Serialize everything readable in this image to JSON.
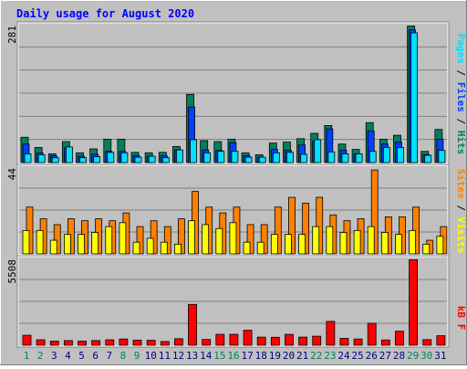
{
  "title": "Daily usage for August 2020",
  "colors": {
    "hits": "#00805c",
    "files": "#0040ff",
    "pages": "#00e0ff",
    "visits": "#ffff00",
    "sites": "#ff8000",
    "kbytes": "#ff0000",
    "title": "#0000ff",
    "weekend_day": "#00805c",
    "weekday_day": "#000080",
    "plot_bg": "#c0c0c0",
    "frame_bg": "#ffffff"
  },
  "chart_data": [
    {
      "type": "bar",
      "panel": "hits",
      "ymax_label": "281",
      "ylim": [
        0,
        281
      ],
      "legend": [
        "Pages",
        "/",
        "Files",
        "/",
        "Hits"
      ],
      "categories": [
        "1",
        "2",
        "3",
        "4",
        "5",
        "6",
        "7",
        "8",
        "9",
        "10",
        "11",
        "12",
        "13",
        "14",
        "15",
        "16",
        "17",
        "18",
        "19",
        "20",
        "21",
        "22",
        "23",
        "24",
        "25",
        "26",
        "27",
        "28",
        "29",
        "30",
        "31"
      ],
      "weekend_days": [
        "1",
        "2",
        "8",
        "9",
        "15",
        "16",
        "22",
        "23",
        "29",
        "30"
      ],
      "series": [
        {
          "name": "Hits",
          "values": [
            52,
            31,
            18,
            43,
            20,
            28,
            48,
            48,
            21,
            20,
            21,
            33,
            140,
            45,
            43,
            48,
            20,
            16,
            40,
            42,
            49,
            60,
            76,
            38,
            27,
            82,
            48,
            56,
            280,
            23,
            68
          ]
        },
        {
          "name": "Files",
          "values": [
            38,
            20,
            14,
            30,
            13,
            17,
            23,
            23,
            14,
            13,
            14,
            26,
            114,
            26,
            25,
            41,
            14,
            11,
            27,
            25,
            36,
            44,
            69,
            25,
            18,
            65,
            38,
            42,
            272,
            16,
            48
          ]
        },
        {
          "name": "Pages",
          "values": [
            18,
            16,
            10,
            32,
            10,
            12,
            21,
            20,
            11,
            13,
            10,
            26,
            47,
            20,
            23,
            23,
            11,
            11,
            20,
            21,
            17,
            47,
            22,
            18,
            18,
            23,
            31,
            31,
            266,
            15,
            25
          ]
        }
      ]
    },
    {
      "type": "bar",
      "panel": "visits",
      "ymax_label": "44",
      "ylim": [
        0,
        44
      ],
      "legend": [
        "Sites",
        "/",
        "Visits"
      ],
      "categories": [
        "1",
        "2",
        "3",
        "4",
        "5",
        "6",
        "7",
        "8",
        "9",
        "10",
        "11",
        "12",
        "13",
        "14",
        "15",
        "16",
        "17",
        "18",
        "19",
        "20",
        "21",
        "22",
        "23",
        "24",
        "25",
        "26",
        "27",
        "28",
        "29",
        "30",
        "31"
      ],
      "series": [
        {
          "name": "Visits",
          "values": [
            12,
            12,
            7,
            10,
            10,
            11,
            14,
            16,
            6,
            8,
            6,
            5,
            17,
            15,
            13,
            16,
            6,
            6,
            10,
            10,
            10,
            14,
            14,
            11,
            12,
            14,
            11,
            10,
            12,
            5,
            9
          ]
        },
        {
          "name": "Sites",
          "values": [
            24,
            18,
            15,
            18,
            17,
            18,
            17,
            21,
            14,
            17,
            14,
            18,
            32,
            24,
            21,
            24,
            15,
            15,
            24,
            29,
            26,
            29,
            20,
            17,
            18,
            43,
            19,
            19,
            24,
            7,
            14
          ]
        }
      ]
    },
    {
      "type": "bar",
      "panel": "kbytes",
      "ymax_label": "5508",
      "ylim": [
        0,
        5508
      ],
      "legend": [
        "kB",
        "F"
      ],
      "categories": [
        "1",
        "2",
        "3",
        "4",
        "5",
        "6",
        "7",
        "8",
        "9",
        "10",
        "11",
        "12",
        "13",
        "14",
        "15",
        "16",
        "17",
        "18",
        "19",
        "20",
        "21",
        "22",
        "23",
        "24",
        "25",
        "26",
        "27",
        "28",
        "29",
        "30",
        "31"
      ],
      "series": [
        {
          "name": "KBytes",
          "values": [
            640,
            350,
            260,
            300,
            260,
            300,
            350,
            400,
            330,
            320,
            240,
            420,
            2620,
            370,
            700,
            700,
            960,
            520,
            510,
            700,
            520,
            580,
            1530,
            440,
            400,
            1410,
            340,
            900,
            5490,
            360,
            610
          ]
        }
      ]
    }
  ]
}
